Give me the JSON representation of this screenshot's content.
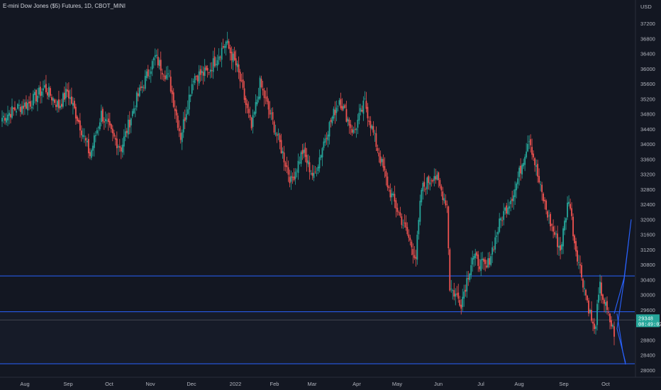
{
  "chart_data": {
    "type": "candlestick",
    "title": "E-mini Dow Jones ($5) Futures, 1D, CBOT_MINI",
    "currency": "USD",
    "ylim": [
      27900,
      37500
    ],
    "y_ticks": [
      28000,
      28400,
      28800,
      29200,
      29600,
      30000,
      30400,
      30800,
      31200,
      31600,
      32000,
      32400,
      32800,
      33200,
      33600,
      34000,
      34400,
      34800,
      35200,
      35600,
      36000,
      36400,
      36800,
      37200
    ],
    "x_ticks": [
      "Aug",
      "Sep",
      "Oct",
      "Nov",
      "Dec",
      "2022",
      "Feb",
      "Mar",
      "Apr",
      "May",
      "Jun",
      "Jul",
      "Aug",
      "Sep",
      "Oct"
    ],
    "last_price": "29348",
    "countdown": "08:49:02",
    "up_color": "#26a69a",
    "down_color": "#ef5350",
    "level_color": "#2962ff",
    "horizontal_levels": [
      30500,
      29550,
      29330,
      28170
    ],
    "price_path_keypoints": [
      [
        0,
        34700
      ],
      [
        10,
        34950
      ],
      [
        20,
        35100
      ],
      [
        30,
        35500
      ],
      [
        40,
        35000
      ],
      [
        46,
        35400
      ],
      [
        55,
        34500
      ],
      [
        62,
        33700
      ],
      [
        70,
        34800
      ],
      [
        78,
        34200
      ],
      [
        84,
        33900
      ],
      [
        95,
        35200
      ],
      [
        108,
        36300
      ],
      [
        118,
        35700
      ],
      [
        126,
        34200
      ],
      [
        135,
        35800
      ],
      [
        145,
        35900
      ],
      [
        158,
        36700
      ],
      [
        166,
        36000
      ],
      [
        176,
        34400
      ],
      [
        182,
        35600
      ],
      [
        196,
        34000
      ],
      [
        204,
        33000
      ],
      [
        212,
        33800
      ],
      [
        220,
        33100
      ],
      [
        228,
        34200
      ],
      [
        238,
        35200
      ],
      [
        248,
        34300
      ],
      [
        256,
        35100
      ],
      [
        264,
        34000
      ],
      [
        273,
        32800
      ],
      [
        284,
        31800
      ],
      [
        292,
        31000
      ],
      [
        296,
        32800
      ],
      [
        305,
        33200
      ],
      [
        314,
        32400
      ],
      [
        316,
        30200
      ],
      [
        324,
        29800
      ],
      [
        332,
        31000
      ],
      [
        342,
        30700
      ],
      [
        352,
        32000
      ],
      [
        362,
        32800
      ],
      [
        372,
        34200
      ],
      [
        380,
        32800
      ],
      [
        386,
        32000
      ],
      [
        394,
        31200
      ],
      [
        400,
        32600
      ],
      [
        404,
        31400
      ],
      [
        412,
        30000
      ],
      [
        418,
        29000
      ],
      [
        422,
        30200
      ],
      [
        428,
        29400
      ],
      [
        432,
        29000
      ]
    ],
    "projection_path": [
      [
        432,
        29500
      ],
      [
        439,
        30450
      ],
      [
        444,
        32000
      ],
      [
        439,
        30400
      ],
      [
        434,
        29100
      ],
      [
        440,
        28200
      ]
    ],
    "projection_branch": [
      [
        434,
        29500
      ],
      [
        438,
        28500
      ],
      [
        440,
        28150
      ]
    ]
  }
}
